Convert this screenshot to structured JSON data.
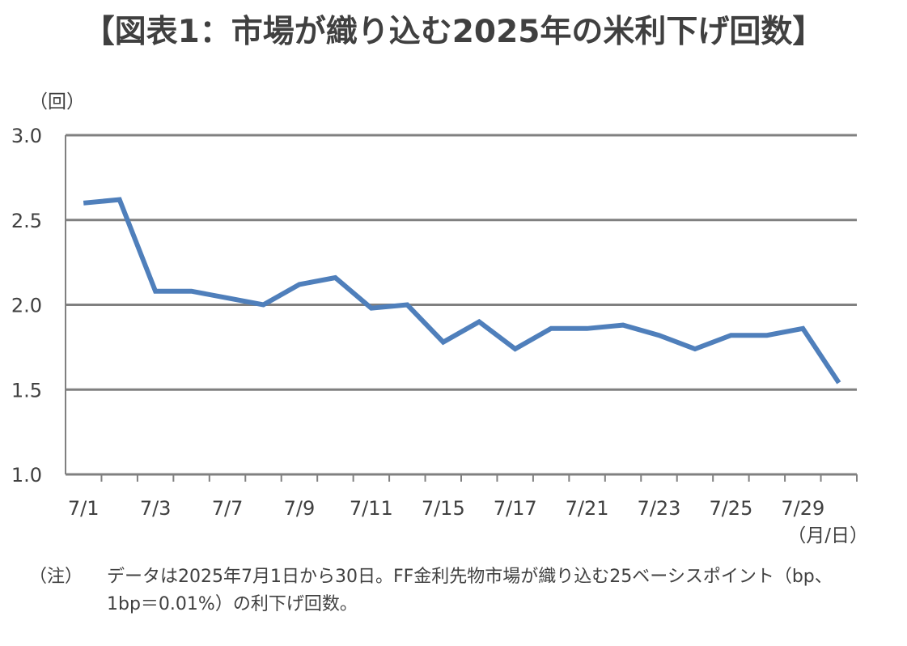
{
  "title": "【図表1：市場が織り込む2025年の米利下げ回数】",
  "note": {
    "label": "（注）",
    "lines": [
      "データは2025年7月1日から30日。FF金利先物市場が織り込む25ベーシスポイント（bp、",
      "1bp＝0.01%）の利下げ回数。"
    ]
  },
  "chart_data": {
    "type": "line",
    "y_unit_label": "（回）",
    "x_unit_label": "（月/日）",
    "ylim": [
      1.0,
      3.0
    ],
    "yticks": [
      "3.0",
      "2.5",
      "2.0",
      "1.5",
      "1.0"
    ],
    "ytick_values": [
      3.0,
      2.5,
      2.0,
      1.5,
      1.0
    ],
    "x_tick_labels": [
      "7/1",
      "7/3",
      "7/7",
      "7/9",
      "7/11",
      "7/15",
      "7/17",
      "7/21",
      "7/23",
      "7/25",
      "7/29"
    ],
    "x_tick_label_index": [
      0,
      2,
      4,
      6,
      8,
      10,
      12,
      14,
      16,
      18,
      20
    ],
    "grid": true,
    "line_color": "#4f7fbb",
    "grid_color": "#808080",
    "series": [
      {
        "dates": [
          "7/1",
          "7/2",
          "7/3",
          "7/4",
          "7/7",
          "7/8",
          "7/9",
          "7/10",
          "7/11",
          "7/14",
          "7/15",
          "7/16",
          "7/17",
          "7/18",
          "7/21",
          "7/22",
          "7/23",
          "7/24",
          "7/25",
          "7/28",
          "7/29",
          "7/30"
        ],
        "values": [
          2.6,
          2.62,
          2.08,
          2.08,
          2.04,
          2.0,
          2.12,
          2.16,
          1.98,
          2.0,
          1.78,
          1.9,
          1.74,
          1.86,
          1.86,
          1.88,
          1.82,
          1.74,
          1.82,
          1.82,
          1.86,
          1.54
        ]
      }
    ]
  }
}
